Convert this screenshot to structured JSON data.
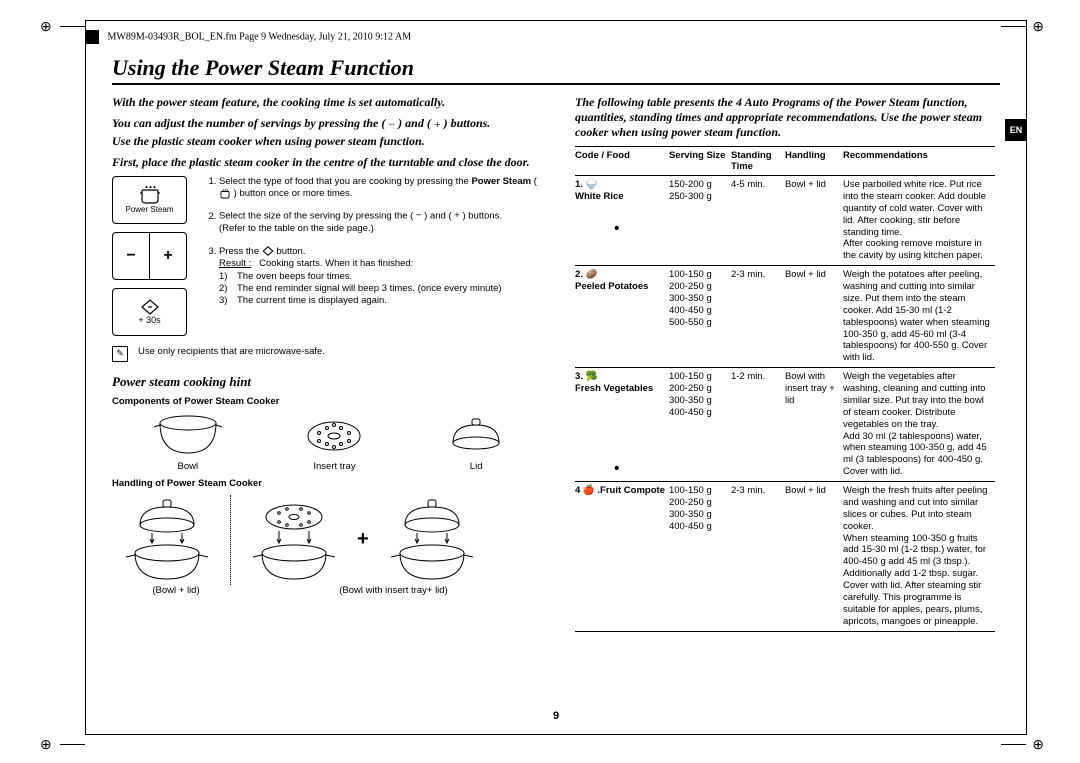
{
  "header": "MW89M-03493R_BOL_EN.fm  Page 9  Wednesday, July 21, 2010  9:12 AM",
  "lang_tab": "EN",
  "page_number": "9",
  "title": "Using the Power Steam Function",
  "intro": {
    "p1": "With the power steam feature, the cooking time is set automatically.",
    "p2a": "You can adjust the number of servings by pressing the ( ",
    "p2b": " ) and ( ",
    "p2c": " ) buttons.",
    "p3": "Use the plastic steam cooker when using power steam function.",
    "p4": "First, place the plastic steam cooker in the centre of the turntable and close the door."
  },
  "panel": {
    "label": "Power Steam",
    "minus": "−",
    "plus": "+",
    "start": "+ 30s"
  },
  "steps": {
    "s1a": "Select the type of food that you are cooking by pressing the ",
    "s1b": "Power Steam",
    "s1c": " ( ",
    "s1d": " ) button once or more times.",
    "s2a": "Select the size of the serving by pressing the ( ",
    "s2b": " ) and ( ",
    "s2c": " ) buttons.",
    "s2note": "(Refer to the table on the side page.)",
    "s3a": "Press the ",
    "s3b": " button.",
    "result_label": "Result :",
    "result_text": "Cooking starts. When it has finished:",
    "r1": "The oven beeps four times.",
    "r2": "The end reminder signal will beep 3 times. (once every minute)",
    "r3": "The current time is displayed again."
  },
  "note": "Use only recipients that are microwave-safe.",
  "hint_heading": "Power steam cooking hint",
  "components_heading": "Components of Power Steam Cooker",
  "components": {
    "bowl": "Bowl",
    "tray": "Insert tray",
    "lid": "Lid"
  },
  "handling_heading": "Handling of Power Steam Cooker",
  "handling": {
    "left": "(Bowl + lid)",
    "right": "(Bowl with insert tray+ lid)"
  },
  "right_intro": "The following table presents the 4 Auto Programs of the Power Steam function, quantities, standing times and appropriate recommendations. Use the power steam cooker when using power steam function.",
  "table": {
    "headers": {
      "code": "Code / Food",
      "serving": "Serving Size",
      "standing": "Standing Time",
      "handling": "Handling",
      "rec": "Recommendations"
    },
    "rows": [
      {
        "code": "1. 🍚\nWhite Rice",
        "serving": "150-200 g\n250-300 g",
        "standing": "4-5 min.",
        "handling": "Bowl + lid",
        "rec": "Use parboiled white rice. Put rice into the steam cooker. Add double quantity of cold water. Cover with lid. After cooking, stir before standing time.\nAfter cooking remove moisture in the cavity by using kitchen paper."
      },
      {
        "code": "2. 🥔\nPeeled Potatoes",
        "serving": "100-150 g\n200-250 g\n300-350 g\n400-450 g\n500-550 g",
        "standing": "2-3 min.",
        "handling": "Bowl + lid",
        "rec": "Weigh the potatoes after peeling, washing and cutting into similar size. Put them into the steam cooker. Add 15-30 ml (1-2 tablespoons) water when steaming 100-350 g, add 45-60 ml (3-4 tablespoons) for 400-550 g. Cover with lid."
      },
      {
        "code": "3. 🥦\nFresh Vegetables",
        "serving": "100-150 g\n200-250 g\n300-350 g\n400-450 g",
        "standing": "1-2 min.",
        "handling": "Bowl with insert tray + lid",
        "rec": "Weigh the vegetables after washing, cleaning and cutting into similar size. Put tray into the bowl of steam cooker. Distribute vegetables on the tray.\nAdd 30 ml (2 tablespoons) water, when steaming 100-350 g, add 45 ml (3 tablespoons) for 400-450 g. Cover with lid."
      },
      {
        "code": "4 🍎 .Fruit Compote",
        "serving": "100-150 g\n200-250 g\n300-350 g\n400-450 g",
        "standing": "2-3 min.",
        "handling": "Bowl + lid",
        "rec": "Weigh the fresh fruits after peeling and washing and cut into similar slices or cubes. Put into steam cooker.\nWhen steaming 100-350 g fruits add 15-30 ml (1-2 tbsp.) water, for 400-450 g add 45 ml (3 tbsp.). Additionally add 1-2 tbsp. sugar. Cover with lid. After steaming stir carefully. This programme is suitable for apples, pears, plums, apricots, mangoes or pineapple."
      }
    ]
  }
}
